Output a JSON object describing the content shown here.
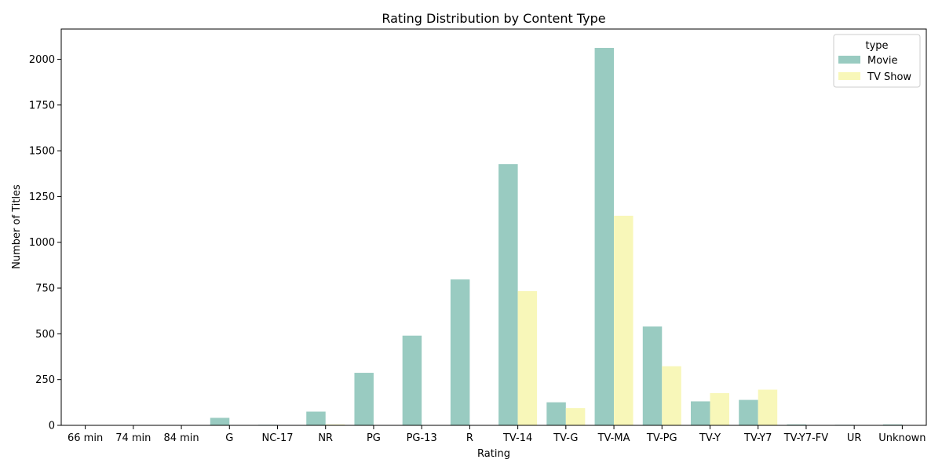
{
  "chart_data": {
    "type": "bar",
    "title": "Rating Distribution by Content Type",
    "xlabel": "Rating",
    "ylabel": "Number of Titles",
    "categories": [
      "66 min",
      "74 min",
      "84 min",
      "G",
      "NC-17",
      "NR",
      "PG",
      "PG-13",
      "R",
      "TV-14",
      "TV-G",
      "TV-MA",
      "TV-PG",
      "TV-Y",
      "TV-Y7",
      "TV-Y7-FV",
      "UR",
      "Unknown"
    ],
    "series": [
      {
        "name": "Movie",
        "color": "#99cbc1",
        "values": [
          1,
          1,
          1,
          41,
          3,
          75,
          287,
          490,
          797,
          1427,
          126,
          2062,
          540,
          131,
          139,
          5,
          3,
          5
        ]
      },
      {
        "name": "TV Show",
        "color": "#f8f7b9",
        "values": [
          0,
          0,
          0,
          0,
          0,
          5,
          0,
          0,
          2,
          733,
          94,
          1145,
          323,
          176,
          195,
          1,
          0,
          2
        ]
      }
    ],
    "ylim": [
      0,
      2165
    ],
    "yticks": [
      0,
      250,
      500,
      750,
      1000,
      1250,
      1500,
      1750,
      2000
    ],
    "grid": false,
    "legend": {
      "title": "type",
      "position": "top-right"
    }
  }
}
